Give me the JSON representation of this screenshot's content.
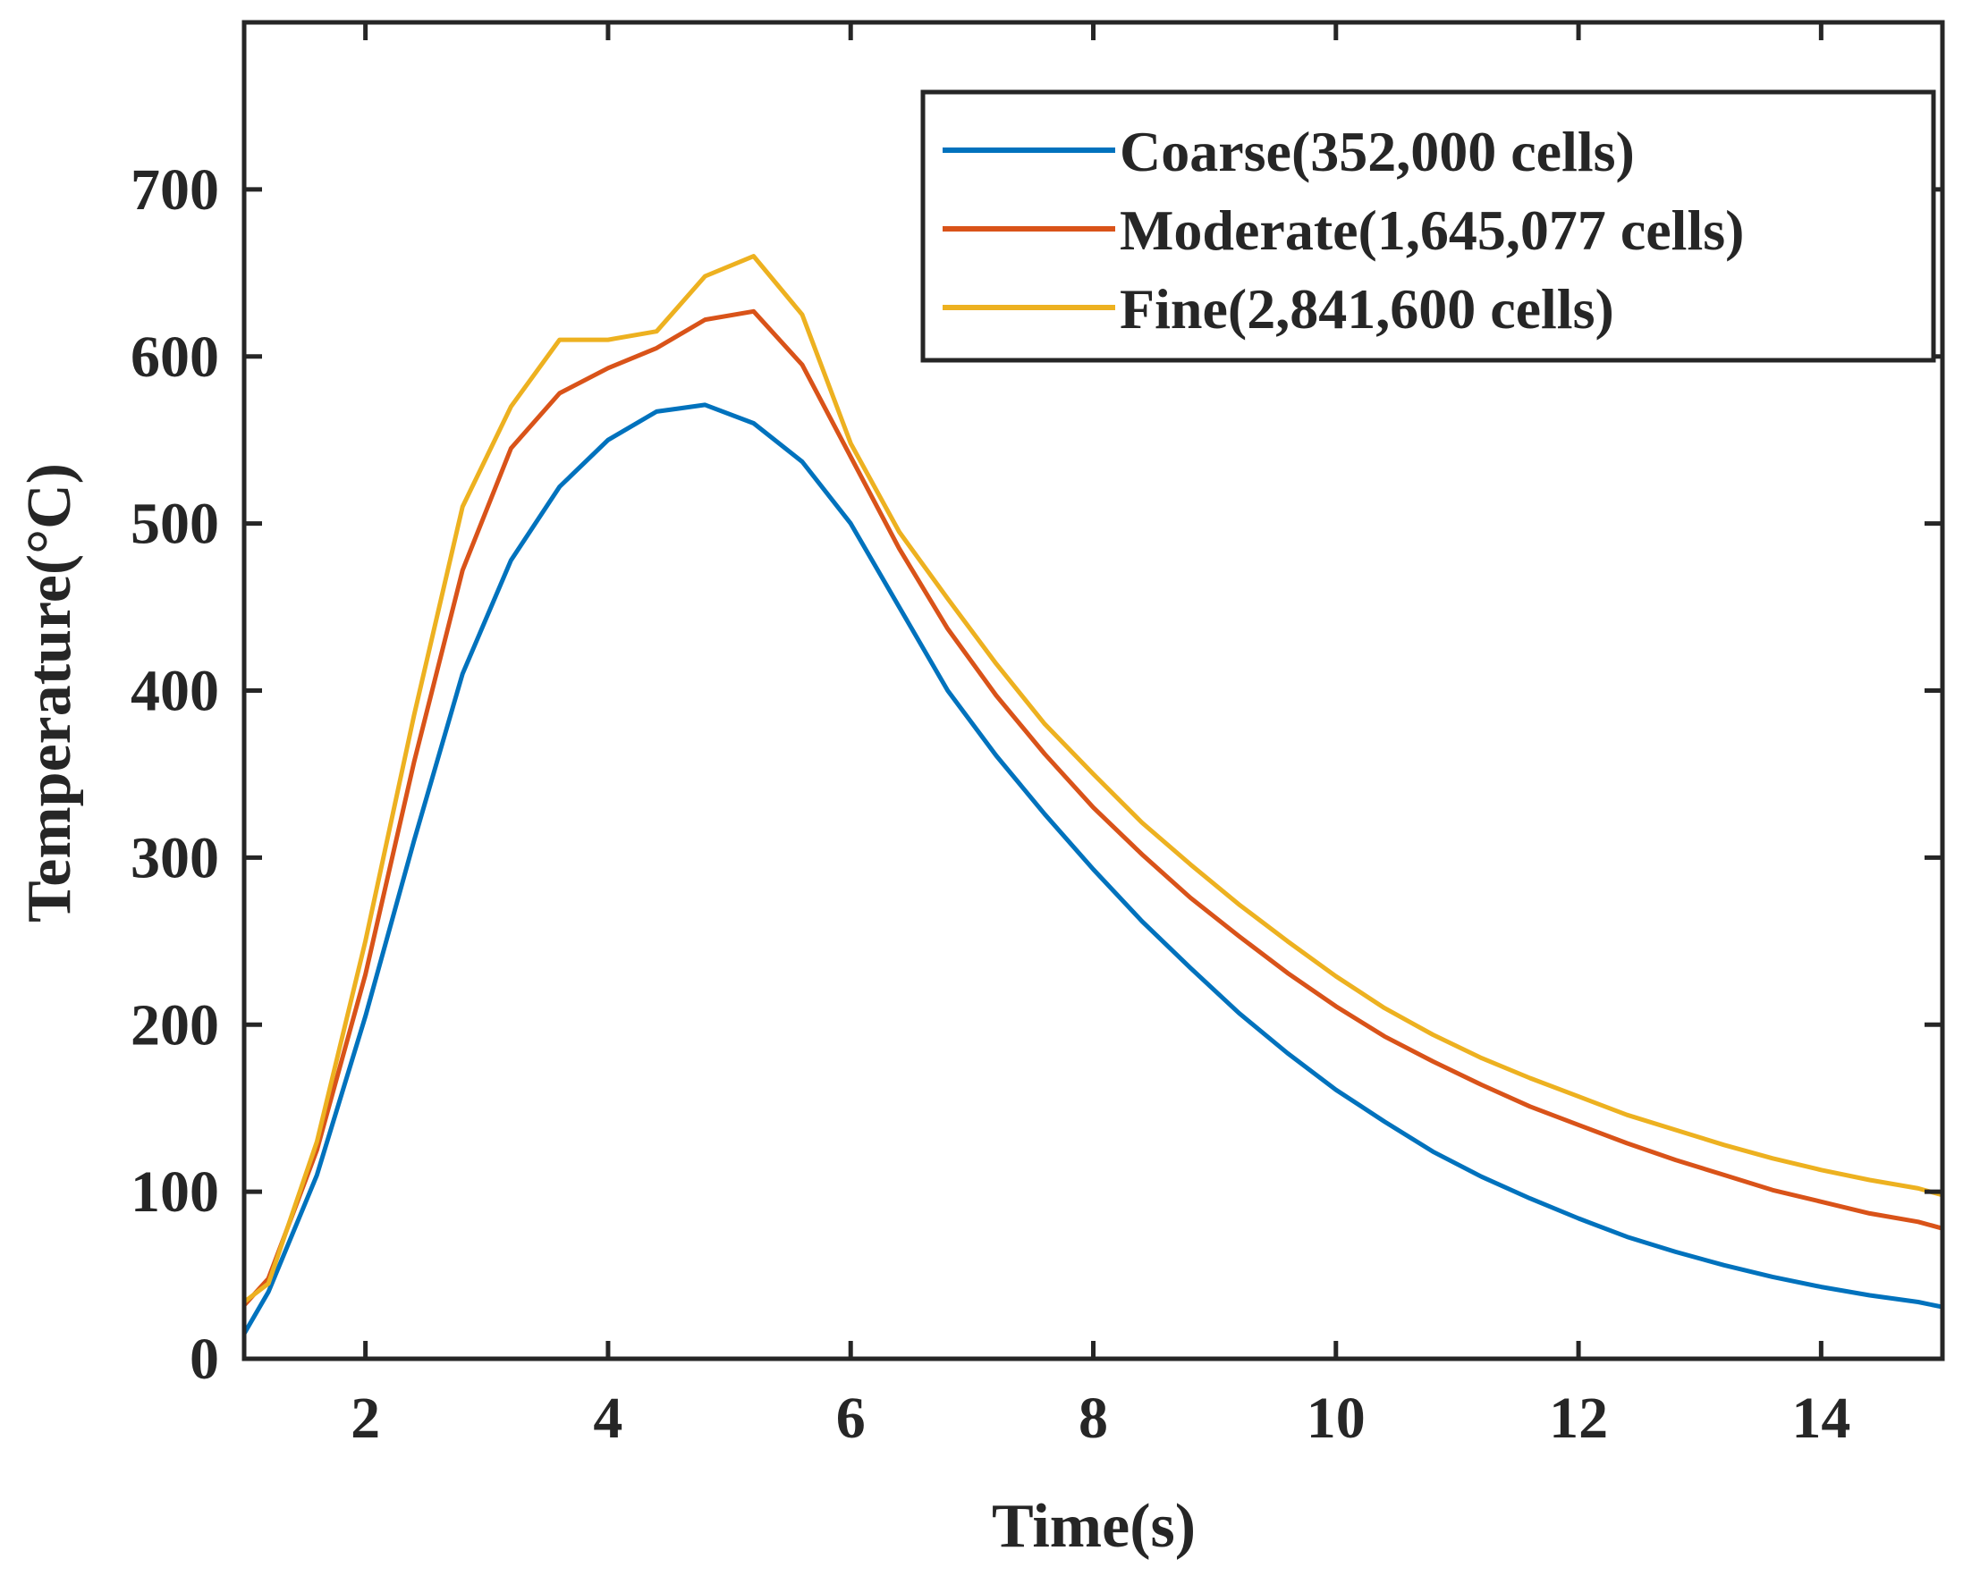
{
  "chart_data": {
    "type": "line",
    "title": "",
    "xlabel": "Time(s)",
    "ylabel": "Temperature(°C)",
    "xlim": [
      1,
      15
    ],
    "ylim": [
      0,
      800
    ],
    "xticks": [
      2,
      4,
      6,
      8,
      10,
      12,
      14
    ],
    "yticks": [
      0,
      100,
      200,
      300,
      400,
      500,
      600,
      700
    ],
    "grid": false,
    "legend_position": "top-right",
    "x": [
      1,
      1.2,
      1.6,
      2,
      2.4,
      2.8,
      3.2,
      3.6,
      4,
      4.4,
      4.8,
      5.2,
      5.6,
      6,
      6.4,
      6.8,
      7.2,
      7.6,
      8,
      8.4,
      8.8,
      9.2,
      9.6,
      10,
      10.4,
      10.8,
      11.2,
      11.6,
      12,
      12.4,
      12.8,
      13.2,
      13.6,
      14,
      14.4,
      14.8,
      15
    ],
    "series": [
      {
        "name": "Coarse(352,000 cells)",
        "color": "#0072BD",
        "values": [
          15,
          40,
          110,
          205,
          310,
          410,
          478,
          522,
          550,
          567,
          571,
          560,
          537,
          500,
          450,
          400,
          361,
          326,
          293,
          262,
          234,
          207,
          183,
          161,
          142,
          124,
          109,
          96,
          84,
          73,
          64,
          56,
          49,
          43,
          38,
          34,
          31
        ]
      },
      {
        "name": "Moderate(1,645,077 cells)",
        "color": "#D95319",
        "values": [
          32,
          48,
          125,
          230,
          357,
          472,
          545,
          578,
          593,
          605,
          622,
          627,
          595,
          540,
          485,
          437,
          397,
          362,
          330,
          302,
          276,
          253,
          231,
          211,
          193,
          178,
          164,
          151,
          140,
          129,
          119,
          110,
          101,
          94,
          87,
          82,
          78
        ]
      },
      {
        "name": "Fine(2,841,600 cells)",
        "color": "#EDB120",
        "values": [
          34,
          45,
          130,
          250,
          385,
          510,
          570,
          610,
          610,
          615,
          648,
          660,
          625,
          548,
          495,
          455,
          416,
          380,
          350,
          321,
          296,
          272,
          250,
          229,
          210,
          194,
          180,
          168,
          157,
          146,
          137,
          128,
          120,
          113,
          107,
          102,
          98
        ]
      }
    ]
  }
}
